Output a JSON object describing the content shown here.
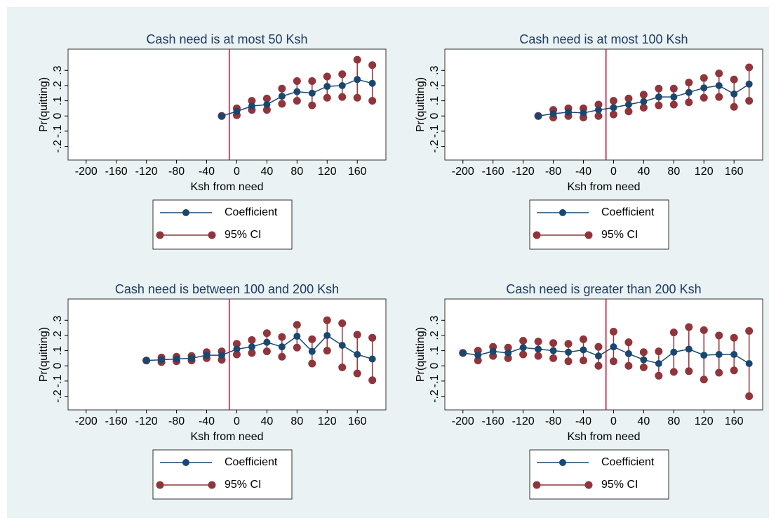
{
  "chart_data": [
    {
      "type": "line",
      "title": "Cash need is at most 50 Ksh",
      "xlabel": "Ksh from need",
      "ylabel": "Pr(quitting)",
      "xlim": [
        -224,
        198
      ],
      "ylim": [
        -0.29,
        0.44
      ],
      "xticks": [
        -200,
        -160,
        -120,
        -80,
        -40,
        0,
        40,
        80,
        120,
        160
      ],
      "yticks": [
        {
          "value": -0.2,
          "label": "-.2"
        },
        {
          "value": -0.1,
          "label": "-.1"
        },
        0,
        {
          "value": 0.1,
          "label": ".1"
        },
        {
          "value": 0.2,
          "label": ".2"
        },
        {
          "value": 0.3,
          "label": ".3"
        }
      ],
      "xline": -10,
      "x": [
        -20,
        0,
        20,
        40,
        60,
        80,
        100,
        120,
        140,
        160,
        180
      ],
      "series": [
        {
          "name": "Coefficient",
          "color": "#1a476f",
          "values": [
            0,
            0.03,
            0.065,
            0.075,
            0.13,
            0.16,
            0.15,
            0.195,
            0.2,
            0.24,
            0.215
          ]
        },
        {
          "name": "95% CI",
          "color": "#90353b",
          "lower": [
            0,
            0.005,
            0.04,
            0.04,
            0.08,
            0.1,
            0.07,
            0.12,
            0.125,
            0.12,
            0.1
          ],
          "upper": [
            0,
            0.05,
            0.1,
            0.115,
            0.18,
            0.23,
            0.23,
            0.26,
            0.275,
            0.37,
            0.335
          ]
        }
      ]
    },
    {
      "type": "line",
      "title": "Cash need is at most 100 Ksh",
      "xlabel": "Ksh from need",
      "ylabel": "Pr(quitting)",
      "xlim": [
        -224,
        198
      ],
      "ylim": [
        -0.29,
        0.44
      ],
      "xticks": [
        -200,
        -160,
        -120,
        -80,
        -40,
        0,
        40,
        80,
        120,
        160
      ],
      "yticks": [
        {
          "value": -0.2,
          "label": "-.2"
        },
        {
          "value": -0.1,
          "label": "-.1"
        },
        0,
        {
          "value": 0.1,
          "label": ".1"
        },
        {
          "value": 0.2,
          "label": ".2"
        },
        {
          "value": 0.3,
          "label": ".3"
        }
      ],
      "xline": -10,
      "x": [
        -100,
        -80,
        -60,
        -40,
        -20,
        0,
        20,
        40,
        60,
        80,
        100,
        120,
        140,
        160,
        180
      ],
      "series": [
        {
          "name": "Coefficient",
          "color": "#1a476f",
          "values": [
            0,
            0.015,
            0.025,
            0.02,
            0.04,
            0.055,
            0.075,
            0.095,
            0.125,
            0.125,
            0.155,
            0.185,
            0.2,
            0.145,
            0.21
          ]
        },
        {
          "name": "95% CI",
          "color": "#90353b",
          "lower": [
            0,
            -0.01,
            0,
            -0.01,
            0,
            0.01,
            0.03,
            0.055,
            0.07,
            0.075,
            0.09,
            0.12,
            0.125,
            0.06,
            0.1
          ],
          "upper": [
            0,
            0.04,
            0.05,
            0.05,
            0.075,
            0.1,
            0.115,
            0.14,
            0.18,
            0.18,
            0.22,
            0.25,
            0.28,
            0.24,
            0.32
          ]
        }
      ]
    },
    {
      "type": "line",
      "title": "Cash need is between 100 and 200 Ksh",
      "xlabel": "Ksh from need",
      "ylabel": "Pr(quitting)",
      "xlim": [
        -224,
        198
      ],
      "ylim": [
        -0.29,
        0.44
      ],
      "xticks": [
        -200,
        -160,
        -120,
        -80,
        -40,
        0,
        40,
        80,
        120,
        160
      ],
      "yticks": [
        {
          "value": -0.2,
          "label": "-.2"
        },
        {
          "value": -0.1,
          "label": "-.1"
        },
        0,
        {
          "value": 0.1,
          "label": ".1"
        },
        {
          "value": 0.2,
          "label": ".2"
        },
        {
          "value": 0.3,
          "label": ".3"
        }
      ],
      "xline": -10,
      "x": [
        -120,
        -100,
        -80,
        -60,
        -40,
        -20,
        0,
        20,
        40,
        60,
        80,
        100,
        120,
        140,
        160,
        180
      ],
      "series": [
        {
          "name": "Coefficient",
          "color": "#1a476f",
          "values": [
            0.035,
            0.04,
            0.045,
            0.05,
            0.07,
            0.07,
            0.11,
            0.125,
            0.155,
            0.125,
            0.195,
            0.095,
            0.2,
            0.135,
            0.075,
            0.045
          ]
        },
        {
          "name": "95% CI",
          "color": "#90353b",
          "lower": [
            0.035,
            0.025,
            0.03,
            0.035,
            0.05,
            0.04,
            0.075,
            0.085,
            0.095,
            0.06,
            0.12,
            0.015,
            0.1,
            -0.01,
            -0.05,
            -0.095
          ],
          "upper": [
            0.035,
            0.055,
            0.06,
            0.065,
            0.09,
            0.095,
            0.145,
            0.17,
            0.215,
            0.19,
            0.27,
            0.175,
            0.3,
            0.28,
            0.205,
            0.185
          ]
        }
      ]
    },
    {
      "type": "line",
      "title": "Cash need is greater than 200 Ksh",
      "xlabel": "Ksh from need",
      "ylabel": "Pr(quitting)",
      "xlim": [
        -224,
        198
      ],
      "ylim": [
        -0.29,
        0.44
      ],
      "xticks": [
        -200,
        -160,
        -120,
        -80,
        -40,
        0,
        40,
        80,
        120,
        160
      ],
      "yticks": [
        {
          "value": -0.2,
          "label": "-.2"
        },
        {
          "value": -0.1,
          "label": "-.1"
        },
        0,
        {
          "value": 0.1,
          "label": ".1"
        },
        {
          "value": 0.2,
          "label": ".2"
        },
        {
          "value": 0.3,
          "label": ".3"
        }
      ],
      "xline": -10,
      "x": [
        -200,
        -180,
        -160,
        -140,
        -120,
        -100,
        -80,
        -60,
        -40,
        -20,
        0,
        20,
        40,
        60,
        80,
        100,
        120,
        140,
        160,
        180
      ],
      "series": [
        {
          "name": "Coefficient",
          "color": "#1a476f",
          "values": [
            0.085,
            0.07,
            0.095,
            0.085,
            0.12,
            0.11,
            0.1,
            0.09,
            0.105,
            0.065,
            0.125,
            0.08,
            0.04,
            0.015,
            0.09,
            0.11,
            0.07,
            0.075,
            0.075,
            0.015
          ]
        },
        {
          "name": "95% CI",
          "color": "#90353b",
          "lower": [
            0.085,
            0.035,
            0.065,
            0.05,
            0.075,
            0.065,
            0.05,
            0.03,
            0.035,
            0,
            0.03,
            0,
            -0.01,
            -0.065,
            -0.04,
            -0.035,
            -0.09,
            -0.045,
            -0.03,
            -0.2
          ],
          "upper": [
            0.085,
            0.1,
            0.125,
            0.12,
            0.165,
            0.16,
            0.15,
            0.145,
            0.175,
            0.125,
            0.225,
            0.155,
            0.09,
            0.095,
            0.22,
            0.255,
            0.235,
            0.2,
            0.185,
            0.23
          ]
        }
      ]
    }
  ]
}
